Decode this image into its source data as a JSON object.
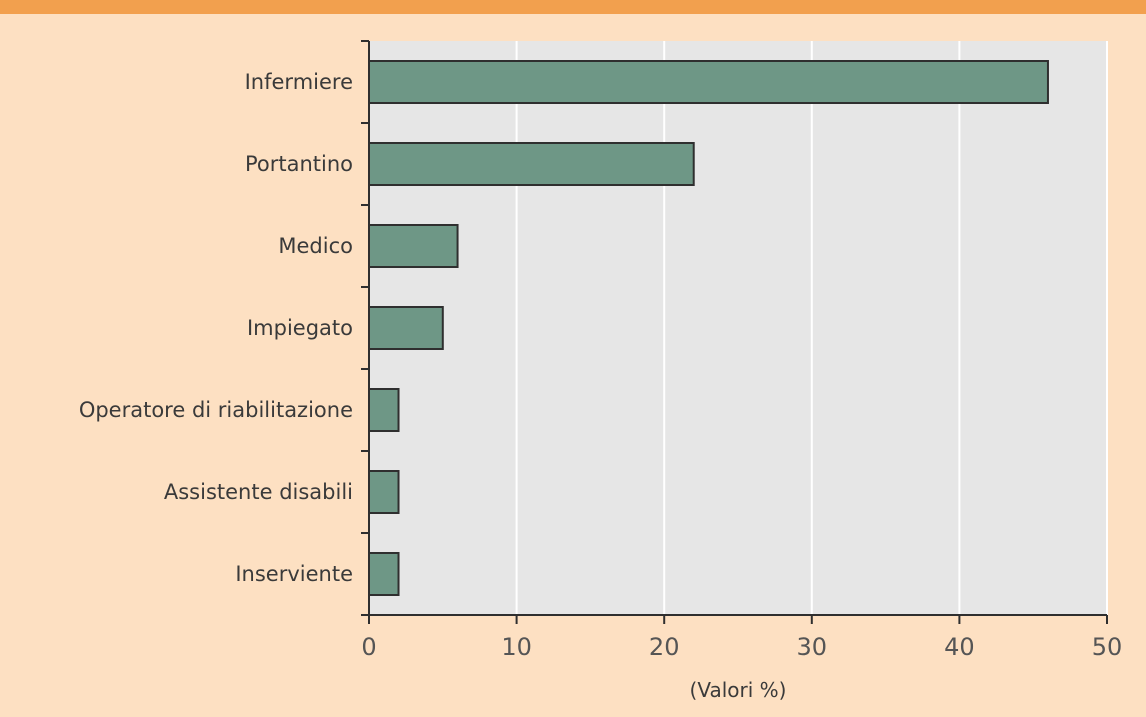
{
  "colors": {
    "top_rule": "#f2a04e",
    "background": "#fde0c2",
    "plot_area": "#e6e6e6",
    "gridline": "#ffffff",
    "bar_fill": "#6e9786",
    "bar_stroke": "#2f2f2f",
    "axis": "#2f2f2f"
  },
  "chart_data": {
    "type": "bar",
    "orientation": "horizontal",
    "categories": [
      "Infermiere",
      "Portantino",
      "Medico",
      "Impiegato",
      "Operatore di riabilitazione",
      "Assistente disabili",
      "Inserviente"
    ],
    "values": [
      46,
      22,
      6,
      5,
      2,
      2,
      2
    ],
    "xlabel": "(Valori %)",
    "xlim": [
      0,
      50
    ],
    "xticks": [
      0,
      10,
      20,
      30,
      40,
      50
    ],
    "grid": true,
    "legend": "none"
  }
}
